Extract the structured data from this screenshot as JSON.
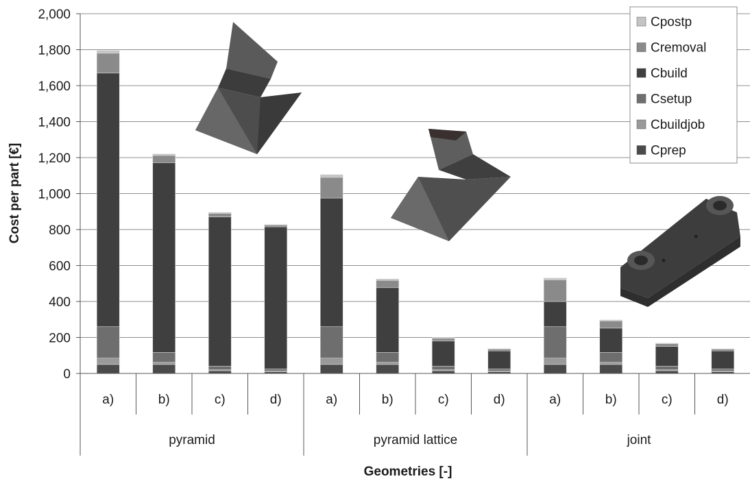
{
  "chart_data": {
    "type": "bar",
    "stacked": true,
    "ylabel": "Cost per part [€]",
    "xlabel": "Geometries [-]",
    "ylim": [
      0,
      2000
    ],
    "yticks": [
      "0",
      "200",
      "400",
      "600",
      "800",
      "1,000",
      "1,200",
      "1,400",
      "1,600",
      "1,800",
      "2,000"
    ],
    "grid": true,
    "legend_position": "top-right",
    "groups": [
      {
        "label": "pyramid",
        "categories": [
          "a)",
          "b)",
          "c)",
          "d)"
        ]
      },
      {
        "label": "pyramid lattice",
        "categories": [
          "a)",
          "b)",
          "c)",
          "d)"
        ]
      },
      {
        "label": "joint",
        "categories": [
          "a)",
          "b)",
          "c)",
          "d)"
        ]
      }
    ],
    "series": [
      {
        "name": "Cprep",
        "color": "#4a4a4a",
        "values": [
          50,
          50,
          15,
          10,
          50,
          50,
          15,
          10,
          50,
          50,
          15,
          10
        ]
      },
      {
        "name": "Cbuildjob",
        "color": "#9a9a9a",
        "values": [
          35,
          12,
          5,
          3,
          35,
          12,
          5,
          3,
          35,
          12,
          5,
          3
        ]
      },
      {
        "name": "Csetup",
        "color": "#6e6e6e",
        "values": [
          175,
          55,
          20,
          12,
          175,
          55,
          20,
          12,
          175,
          55,
          20,
          12
        ]
      },
      {
        "name": "Cbuild",
        "color": "#3f3f3f",
        "values": [
          1410,
          1055,
          830,
          790,
          715,
          360,
          140,
          100,
          140,
          135,
          110,
          100
        ]
      },
      {
        "name": "Cremoval",
        "color": "#8a8a8a",
        "values": [
          110,
          40,
          20,
          10,
          115,
          40,
          15,
          10,
          120,
          40,
          15,
          10
        ]
      },
      {
        "name": "Cpostp",
        "color": "#c4c4c4",
        "values": [
          15,
          8,
          5,
          3,
          15,
          8,
          5,
          3,
          10,
          5,
          3,
          2
        ]
      }
    ]
  }
}
